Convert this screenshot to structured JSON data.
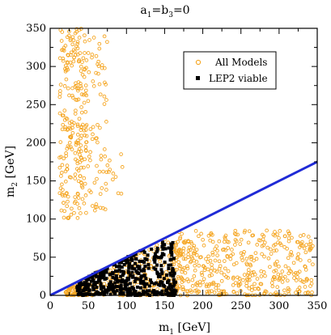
{
  "chart_data": {
    "type": "scatter",
    "title": {
      "main": "a",
      "sub1": "1",
      "mid": "=b",
      "sub2": "3",
      "end": "=0"
    },
    "xlabel": {
      "main": "m",
      "sub": "1",
      "unit": " [GeV]"
    },
    "ylabel": {
      "main": "m",
      "sub": "2",
      "unit": " [GeV]"
    },
    "xlim": [
      0,
      350
    ],
    "ylim": [
      0,
      350
    ],
    "xticks": [
      0,
      50,
      100,
      150,
      200,
      250,
      300,
      350
    ],
    "yticks": [
      0,
      50,
      100,
      150,
      200,
      250,
      300,
      350
    ],
    "grid": false,
    "legend_position": "top-right",
    "colors": {
      "all_models": "#f5a623",
      "lep2": "#000000",
      "line": "#1f2ad6",
      "axis": "#000000"
    },
    "line": {
      "name": "",
      "x": [
        0,
        350
      ],
      "y": [
        0,
        175
      ]
    },
    "series": [
      {
        "name": "All Models",
        "marker": "open-circle",
        "regions": [
          {
            "xmin": 12,
            "xmax": 48,
            "ymin": 100,
            "ymax": 350,
            "count": 230
          },
          {
            "xmin": 40,
            "xmax": 75,
            "ymin": 110,
            "ymax": 340,
            "count": 80
          },
          {
            "xmin": 72,
            "xmax": 95,
            "ymin": 130,
            "ymax": 190,
            "count": 12
          },
          {
            "xmin": 20,
            "xmax": 175,
            "ymin": 0,
            "ymax": 80,
            "count": 380,
            "below_line": true
          },
          {
            "xmin": 160,
            "xmax": 345,
            "ymin": 0,
            "ymax": 85,
            "count": 420,
            "below_line": true
          }
        ]
      },
      {
        "name": "LEP2 viable",
        "marker": "filled-square",
        "regions": [
          {
            "xmin": 35,
            "xmax": 165,
            "ymin": 0,
            "ymax": 70,
            "count": 420,
            "below_line": true
          }
        ]
      }
    ]
  }
}
